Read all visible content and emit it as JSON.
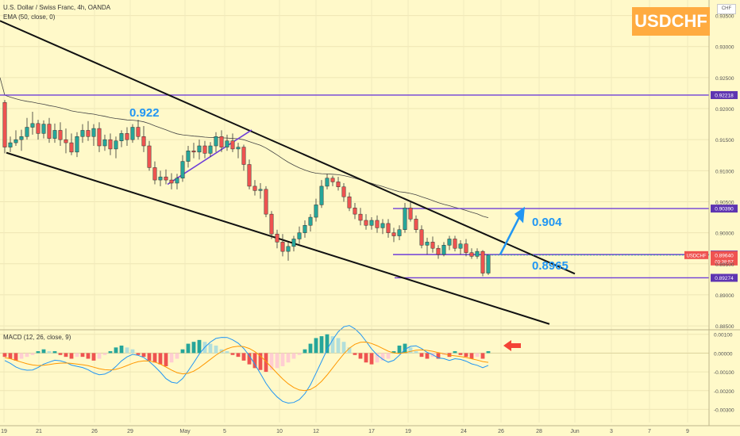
{
  "header": {
    "title": "U.S. Dollar / Swiss Franc, 4h, OANDA",
    "indicator": "EMA (50, close, 0)",
    "macd_label": "MACD (12, 26, close, 9)",
    "brand": "USDCHF",
    "currency_badge": "CHF"
  },
  "chart_data": [
    {
      "type": "candlestick",
      "title": "U.S. Dollar / Swiss Franc, 4h, OANDA",
      "symbol": "USDCHF",
      "timeframe": "4h",
      "ylim": [
        0.8845,
        0.9375
      ],
      "y_ticks": [
        "0.93500",
        "0.93000",
        "0.92500",
        "0.92000",
        "0.91500",
        "0.91000",
        "0.90500",
        "0.90000",
        "0.89500",
        "0.89000",
        "0.88500"
      ],
      "x_ticks": [
        "19",
        "21",
        "26",
        "29",
        "May",
        "5",
        "10",
        "12",
        "17",
        "19",
        "24",
        "26",
        "28",
        "Jun",
        "3",
        "7",
        "9"
      ],
      "horizontal_levels": [
        {
          "value": 0.92218,
          "label": "0.92218"
        },
        {
          "value": 0.9039,
          "label": "0.90390"
        },
        {
          "value": 0.89649,
          "label": "0.89649"
        },
        {
          "value": 0.89274,
          "label": "0.89274"
        }
      ],
      "current_price": {
        "symbol": "USDCHF",
        "value": "0.89640",
        "countdown": "03:38:57"
      },
      "annotations": [
        {
          "text": "0.922",
          "value": 0.922
        },
        {
          "text": "0.904",
          "value": 0.904
        },
        {
          "text": "0.8965",
          "value": 0.8965
        }
      ],
      "ema": {
        "period": 50,
        "source": "close",
        "offset": 0
      },
      "candles_ohlc": [
        [
          0.921,
          0.9214,
          0.9128,
          0.9138
        ],
        [
          0.9138,
          0.9155,
          0.913,
          0.9145
        ],
        [
          0.9145,
          0.9165,
          0.914,
          0.915
        ],
        [
          0.915,
          0.9166,
          0.9132,
          0.9155
        ],
        [
          0.9155,
          0.9185,
          0.915,
          0.917
        ],
        [
          0.917,
          0.9195,
          0.9158,
          0.9176
        ],
        [
          0.9176,
          0.9182,
          0.915,
          0.916
        ],
        [
          0.916,
          0.9181,
          0.9152,
          0.9175
        ],
        [
          0.9175,
          0.9185,
          0.9145,
          0.9152
        ],
        [
          0.9152,
          0.9176,
          0.9145,
          0.9165
        ],
        [
          0.9165,
          0.9178,
          0.914,
          0.915
        ],
        [
          0.915,
          0.9168,
          0.9128,
          0.9145
        ],
        [
          0.9145,
          0.916,
          0.9125,
          0.913
        ],
        [
          0.913,
          0.9162,
          0.9122,
          0.9155
        ],
        [
          0.9155,
          0.9175,
          0.9145,
          0.9165
        ],
        [
          0.9165,
          0.918,
          0.9148,
          0.9155
        ],
        [
          0.9155,
          0.9175,
          0.914,
          0.9168
        ],
        [
          0.9168,
          0.9178,
          0.913,
          0.914
        ],
        [
          0.914,
          0.9158,
          0.9132,
          0.915
        ],
        [
          0.915,
          0.916,
          0.9125,
          0.9135
        ],
        [
          0.9135,
          0.9155,
          0.912,
          0.9148
        ],
        [
          0.9148,
          0.9165,
          0.9138,
          0.916
        ],
        [
          0.916,
          0.917,
          0.914,
          0.915
        ],
        [
          0.915,
          0.9175,
          0.9145,
          0.917
        ],
        [
          0.917,
          0.9182,
          0.915,
          0.9155
        ],
        [
          0.9155,
          0.9172,
          0.913,
          0.914
        ],
        [
          0.914,
          0.9148,
          0.91,
          0.9105
        ],
        [
          0.9105,
          0.9115,
          0.9078,
          0.9085
        ],
        [
          0.9085,
          0.91,
          0.9075,
          0.909
        ],
        [
          0.909,
          0.9102,
          0.9078,
          0.9085
        ],
        [
          0.9085,
          0.9096,
          0.907,
          0.908
        ],
        [
          0.908,
          0.9095,
          0.907,
          0.9088
        ],
        [
          0.9088,
          0.9125,
          0.9082,
          0.9115
        ],
        [
          0.9115,
          0.914,
          0.9105,
          0.9132
        ],
        [
          0.9132,
          0.9145,
          0.912,
          0.913
        ],
        [
          0.913,
          0.915,
          0.9118,
          0.914
        ],
        [
          0.914,
          0.9148,
          0.912,
          0.9128
        ],
        [
          0.9128,
          0.9146,
          0.9122,
          0.914
        ],
        [
          0.914,
          0.9162,
          0.913,
          0.9155
        ],
        [
          0.9155,
          0.9165,
          0.913,
          0.9138
        ],
        [
          0.9138,
          0.9158,
          0.9132,
          0.9148
        ],
        [
          0.9148,
          0.916,
          0.913,
          0.9135
        ],
        [
          0.9135,
          0.9145,
          0.912,
          0.9138
        ],
        [
          0.9138,
          0.9142,
          0.91,
          0.911
        ],
        [
          0.911,
          0.9118,
          0.907,
          0.9075
        ],
        [
          0.9075,
          0.9085,
          0.906,
          0.9068
        ],
        [
          0.9068,
          0.908,
          0.9055,
          0.907
        ],
        [
          0.907,
          0.9075,
          0.9025,
          0.903
        ],
        [
          0.903,
          0.9035,
          0.899,
          0.8998
        ],
        [
          0.8998,
          0.9005,
          0.8975,
          0.8985
        ],
        [
          0.8985,
          0.8998,
          0.8962,
          0.897
        ],
        [
          0.897,
          0.8985,
          0.8955,
          0.8978
        ],
        [
          0.8978,
          0.8995,
          0.897,
          0.899
        ],
        [
          0.899,
          0.901,
          0.8982,
          0.9
        ],
        [
          0.9,
          0.902,
          0.8992,
          0.9012
        ],
        [
          0.9012,
          0.903,
          0.9002,
          0.9025
        ],
        [
          0.9025,
          0.9055,
          0.9018,
          0.9045
        ],
        [
          0.9045,
          0.9085,
          0.904,
          0.9075
        ],
        [
          0.9075,
          0.9095,
          0.907,
          0.9088
        ],
        [
          0.9088,
          0.9092,
          0.9075,
          0.9082
        ],
        [
          0.9082,
          0.909,
          0.9068,
          0.9074
        ],
        [
          0.9074,
          0.908,
          0.905,
          0.9058
        ],
        [
          0.9058,
          0.9065,
          0.9035,
          0.904
        ],
        [
          0.904,
          0.9048,
          0.9022,
          0.903
        ],
        [
          0.903,
          0.904,
          0.9012,
          0.902
        ],
        [
          0.902,
          0.903,
          0.9005,
          0.9012
        ],
        [
          0.9012,
          0.9025,
          0.9005,
          0.902
        ],
        [
          0.902,
          0.9028,
          0.9,
          0.9008
        ],
        [
          0.9008,
          0.9022,
          0.8998,
          0.9015
        ],
        [
          0.9015,
          0.9022,
          0.8992,
          0.9
        ],
        [
          0.9,
          0.9008,
          0.8985,
          0.8995
        ],
        [
          0.8995,
          0.9012,
          0.8988,
          0.9005
        ],
        [
          0.9005,
          0.9048,
          0.9,
          0.904
        ],
        [
          0.904,
          0.905,
          0.9018,
          0.9022
        ],
        [
          0.9022,
          0.9028,
          0.9,
          0.9005
        ],
        [
          0.9005,
          0.9012,
          0.8975,
          0.898
        ],
        [
          0.898,
          0.8992,
          0.8965,
          0.8985
        ],
        [
          0.8985,
          0.8994,
          0.8968,
          0.8975
        ],
        [
          0.8975,
          0.898,
          0.8958,
          0.8965
        ],
        [
          0.8965,
          0.8985,
          0.8962,
          0.898
        ],
        [
          0.898,
          0.8995,
          0.8972,
          0.899
        ],
        [
          0.899,
          0.8995,
          0.897,
          0.8975
        ],
        [
          0.8975,
          0.8988,
          0.8965,
          0.8982
        ],
        [
          0.8982,
          0.899,
          0.8962,
          0.8968
        ],
        [
          0.8968,
          0.8975,
          0.8958,
          0.8962
        ],
        [
          0.8962,
          0.8975,
          0.8958,
          0.897
        ],
        [
          0.897,
          0.8972,
          0.893,
          0.8935
        ],
        [
          0.8935,
          0.8965,
          0.8932,
          0.8964
        ]
      ]
    },
    {
      "type": "bar",
      "title": "MACD (12, 26, close, 9)",
      "parameters": {
        "fast": 12,
        "slow": 26,
        "source": "close",
        "signal": 9
      },
      "ylim": [
        -0.0037,
        0.0012
      ],
      "y_ticks": [
        "0.00100",
        "0.00000",
        "-0.00100",
        "-0.00200",
        "-0.00300"
      ],
      "histogram_values": [
        -0.0002,
        -0.0003,
        -0.0004,
        -0.0003,
        -0.0002,
        -0.0001,
        0.0001,
        0.0002,
        0.0001,
        0.0001,
        -0.0001,
        -0.0002,
        -0.0003,
        -0.0002,
        -0.0002,
        -0.0003,
        -0.0004,
        -0.0003,
        -0.0001,
        0.0001,
        0.0003,
        0.0004,
        0.0003,
        0.0002,
        -0.0001,
        -0.0002,
        -0.0004,
        -0.0005,
        -0.0006,
        -0.0007,
        -0.0005,
        -0.0003,
        0.0002,
        0.0005,
        0.0006,
        0.0007,
        0.0006,
        0.0005,
        0.0004,
        0.0002,
        0.0001,
        -0.0001,
        -0.0002,
        -0.0004,
        -0.0006,
        -0.0008,
        -0.0009,
        -0.001,
        -0.0009,
        -0.0008,
        -0.0007,
        -0.0005,
        -0.0003,
        -0.0001,
        0.0002,
        0.0005,
        0.0008,
        0.0009,
        0.001,
        0.0009,
        0.0008,
        0.0006,
        0.0003,
        -0.0001,
        -0.0003,
        -0.0005,
        -0.0006,
        -0.0005,
        -0.0004,
        -0.0003,
        0.0001,
        0.0004,
        0.0005,
        0.0003,
        0.0001,
        -0.0002,
        -0.0003,
        -0.0002,
        -0.0003,
        -0.0001,
        -0.0002,
        0.0001,
        -0.0001,
        -0.0002,
        -0.0003,
        -0.0002,
        -0.0003,
        0.0001
      ]
    }
  ]
}
